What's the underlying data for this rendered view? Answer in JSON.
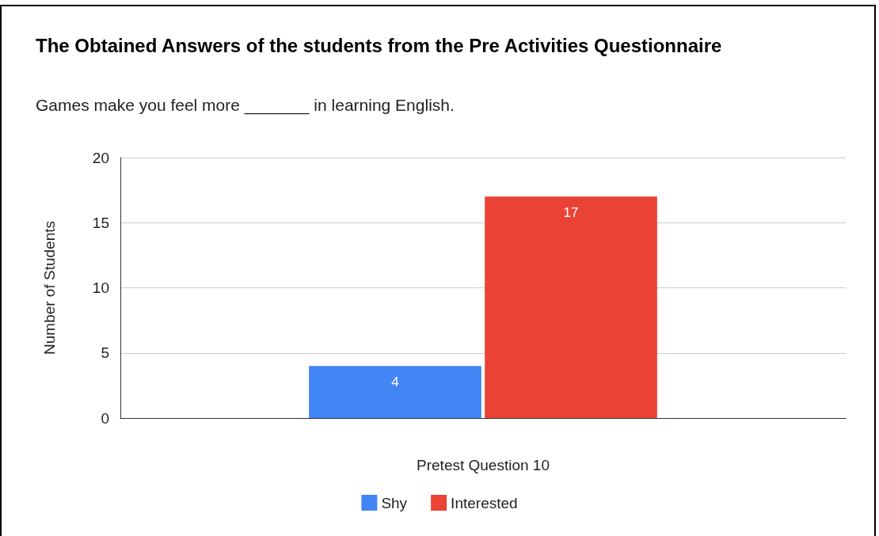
{
  "chart_data": {
    "type": "bar",
    "title": "The Obtained Answers of the students from the Pre Activities Questionnaire",
    "subtitle": "Games make you feel more _______ in learning English.",
    "xlabel": "Pretest Question 10",
    "ylabel": "Number of Students",
    "categories": [
      null
    ],
    "series": [
      {
        "name": "Shy",
        "color": "#4285f4",
        "values": [
          4
        ]
      },
      {
        "name": "Interested",
        "color": "#ea4335",
        "values": [
          17
        ]
      }
    ],
    "ylim": [
      0,
      20
    ],
    "yticks": [
      0,
      5,
      10,
      15,
      20
    ],
    "grid": "y",
    "legend": "bottom",
    "data_labels": true
  }
}
